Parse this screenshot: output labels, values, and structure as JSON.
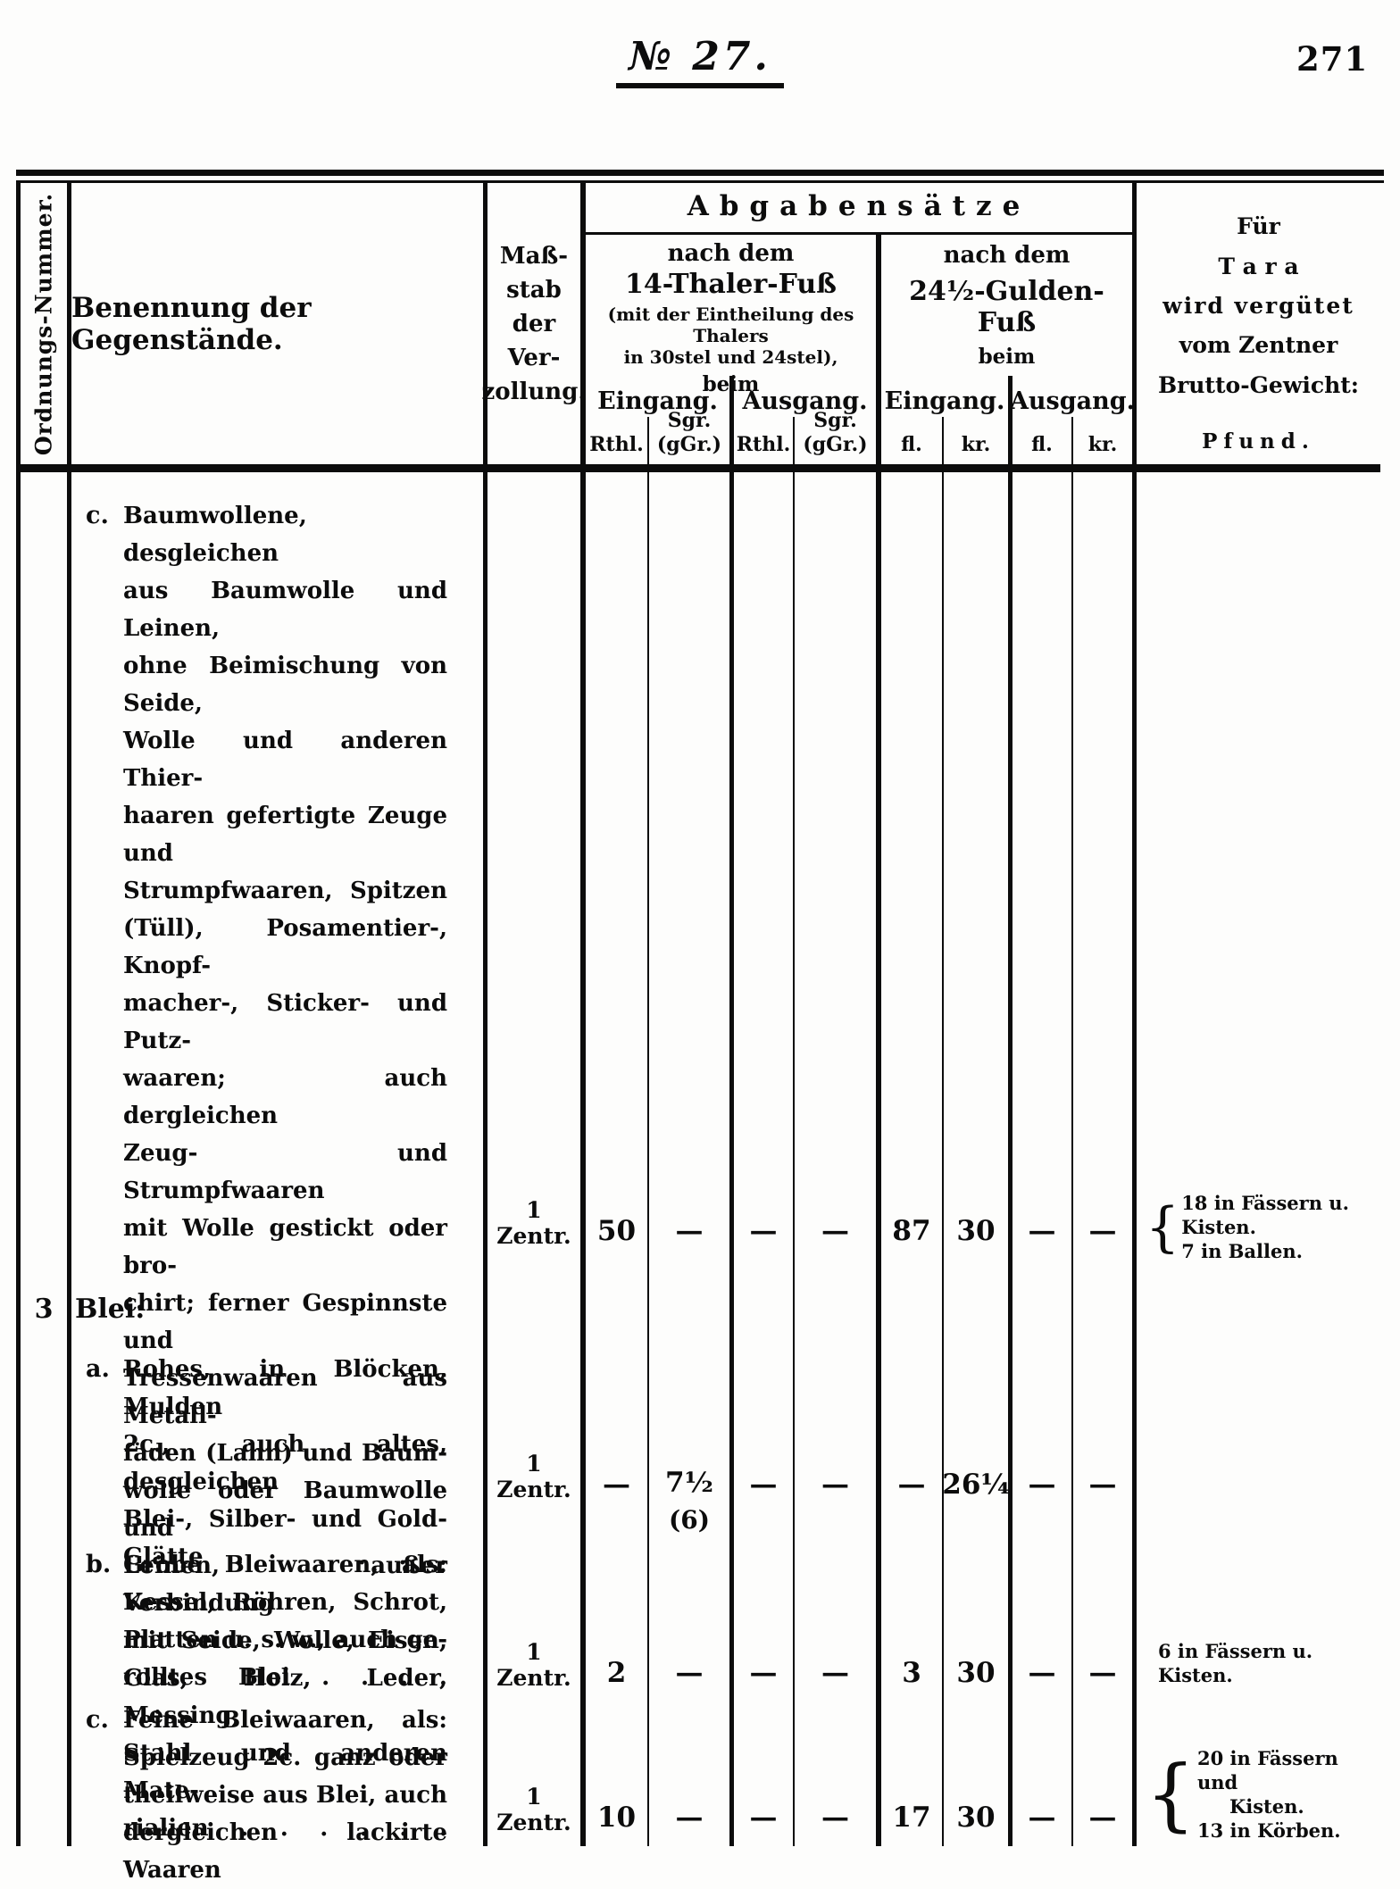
{
  "page": {
    "doc_number": "№ 27.",
    "page_number": "271"
  },
  "header": {
    "ordnungsnummer": "Ordnungs-Nummer.",
    "benennung": "Benennung der Gegenstände.",
    "massstab": "Maß-\nstab\nder\nVer-\nzollung.",
    "abgaben_title": "Abgabensätze",
    "group14": {
      "line1": "nach dem",
      "line2": "14-Thaler-Fuß",
      "line3": "(mit der Eintheilung des",
      "line4": "Thalers",
      "line5": "in 30stel und 24stel),",
      "line6": "beim",
      "eingang": "Eingang.",
      "ausgang": "Ausgang.",
      "unit_rthl": "Rthl.",
      "unit_sgr": "Sgr.",
      "unit_ggr": "(gGr.)"
    },
    "group24": {
      "line1": "nach dem",
      "line2": "24½-Gulden-Fuß",
      "line3": "beim",
      "eingang": "Eingang.",
      "ausgang": "Ausgang.",
      "unit_fl": "fl.",
      "unit_kr": "kr."
    },
    "tara": {
      "line1": "Für",
      "line2": "T a r a",
      "line3": "wird vergütet",
      "line4": "vom Zentner",
      "line5": "Brutto-Gewicht:",
      "unit": "Pfund."
    }
  },
  "body": {
    "item_textiles": {
      "letter": "c.",
      "text": "Baumwollene, desgleichen\naus Baumwolle und Leinen,\nohne Beimischung von Seide,\nWolle und anderen Thier-\nhaaren gefertigte Zeuge und\nStrumpfwaaren, Spitzen\n(Tüll), Posamentier-, Knopf-\nmacher-, Sticker- und Putz-\nwaaren; auch dergleichen\nZeug- und Strumpfwaaren\nmit Wolle gestickt oder bro-\nchirt; ferner Gespinnste und\nTressenwaaren aus Metall-\nfäden (Lahn) und Baum-\nwolle oder Baumwolle und\nLeinen, außer Verbindung\nmit Seide, Wolle, Eisen,\nGlas, Holz, Leder, Messing,\nStahl und anderen Mate-\nrialien . . . . . .",
      "massstab": "1 Zentr.",
      "values": [
        "50",
        "—",
        "—",
        "—",
        "87",
        "30",
        "—",
        "—"
      ],
      "tara": {
        "brace": "{",
        "line1": "18 in Fässern u. Kisten.",
        "line2": "7 in Ballen."
      }
    },
    "section_blei": {
      "number": "3",
      "title": "Blei:"
    },
    "item_a": {
      "letter": "a.",
      "text": "Rohes, in Blöcken, Mulden\n2c., auch altes, desgleichen\nBlei-, Silber- und Gold-\nGlätte . . . . . .",
      "massstab": "1 Zentr.",
      "values": [
        "—",
        "7½",
        "—",
        "—",
        "—",
        "26¼",
        "—",
        "—"
      ],
      "sgr_note": "(6)"
    },
    "item_b": {
      "letter": "b.",
      "text": "Grobe Bleiwaaren, als:\nKessel, Röhren, Schrot,\nPlatten u. s. w., auch ge-\nrolltes Blei . . . .",
      "massstab": "1 Zentr.",
      "values": [
        "2",
        "—",
        "—",
        "—",
        "3",
        "30",
        "—",
        "—"
      ],
      "tara_single": "6 in Fässern u. Kisten."
    },
    "item_c": {
      "letter": "c.",
      "text": "Feine Bleiwaaren, als:\nSpielzeug 2c. ganz oder\ntheilweise aus Blei, auch\ndergleichen lackirte Waaren",
      "massstab": "1 Zentr.",
      "values": [
        "10",
        "—",
        "—",
        "—",
        "17",
        "30",
        "—",
        "—"
      ],
      "tara": {
        "brace": "{",
        "line1": "20 in Fässern und",
        "line2": "Kisten.",
        "line3": "13 in Körben."
      }
    }
  }
}
